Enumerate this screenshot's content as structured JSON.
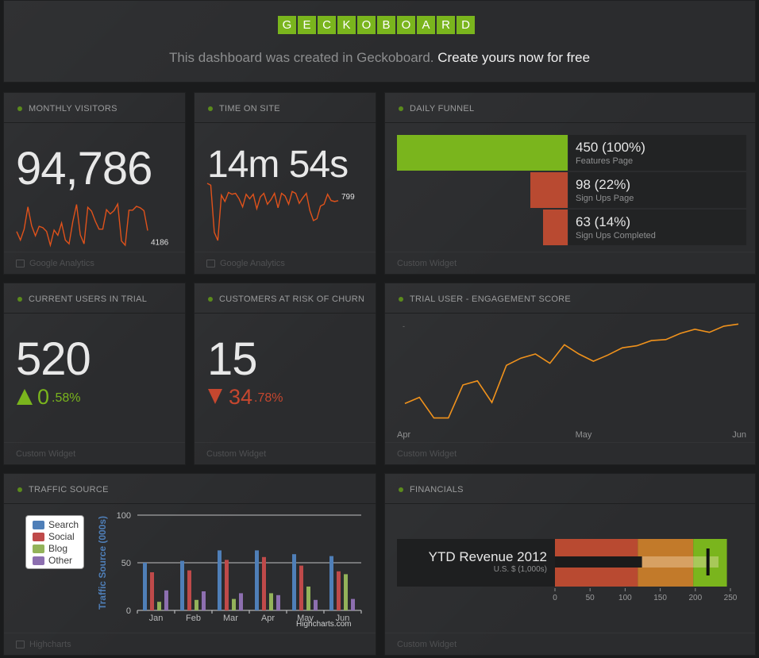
{
  "header": {
    "logo_letters": [
      "G",
      "E",
      "C",
      "K",
      "O",
      "B",
      "O",
      "A",
      "R",
      "D"
    ],
    "tagline_text": "This dashboard was created in Geckoboard.",
    "tagline_link": "Create yours now for free"
  },
  "widgets": {
    "monthly_visitors": {
      "title": "MONTHLY VISITORS",
      "value": "94,786",
      "spark_last": "4186",
      "source": "Google Analytics"
    },
    "time_on_site": {
      "title": "TIME ON SITE",
      "value": "14m 54s",
      "spark_last": "799",
      "source": "Google Analytics"
    },
    "daily_funnel": {
      "title": "DAILY FUNNEL",
      "source": "Custom Widget",
      "rows": [
        {
          "value": "450 (100%)",
          "label": "Features Page",
          "fraction": 1.0,
          "color": "#7ab51d"
        },
        {
          "value": "98 (22%)",
          "label": "Sign Ups Page",
          "fraction": 0.22,
          "color": "#b94a31"
        },
        {
          "value": "63 (14%)",
          "label": "Sign Ups Completed",
          "fraction": 0.14,
          "color": "#b94a31"
        }
      ]
    },
    "current_users_trial": {
      "title": "CURRENT USERS IN TRIAL",
      "value": "520",
      "change_int": "0",
      "change_dec": ".58%",
      "source": "Custom Widget"
    },
    "customers_churn": {
      "title": "CUSTOMERS AT RISK OF CHURN",
      "value": "15",
      "change_int": "34",
      "change_dec": ".78%",
      "source": "Custom Widget"
    },
    "engagement": {
      "title": "TRIAL USER - ENGAGEMENT SCORE",
      "x_labels": [
        "Apr",
        "May",
        "Jun"
      ],
      "source": "Custom Widget"
    },
    "traffic_source": {
      "title": "TRAFFIC SOURCE",
      "source": "Highcharts",
      "credit": "Highcharts.com"
    },
    "financials": {
      "title": "FINANCIALS",
      "label": "YTD Revenue 2012",
      "sublabel": "U.S. $ (1,000s)",
      "source": "Custom Widget"
    }
  },
  "chart_data": [
    {
      "type": "line",
      "name": "monthly-visitors-sparkline",
      "values": [
        4000,
        2200,
        4500,
        9200,
        5200,
        3100,
        5100,
        4800,
        4000,
        1100,
        4300,
        3200,
        5800,
        2200,
        1400,
        6100,
        9700,
        3300,
        1400,
        9100,
        8300,
        6200,
        4500,
        4500,
        8600,
        7700,
        8400,
        9800,
        2000,
        1100,
        8500,
        8500,
        9300,
        9000,
        8400,
        4186
      ],
      "last_label": "4186",
      "color": "#e0521b"
    },
    {
      "type": "line",
      "name": "time-on-site-sparkline",
      "values": [
        990,
        970,
        450,
        360,
        860,
        790,
        890,
        870,
        880,
        820,
        730,
        870,
        820,
        870,
        710,
        840,
        880,
        760,
        810,
        880,
        720,
        880,
        850,
        760,
        900,
        880,
        770,
        830,
        880,
        690,
        580,
        600,
        740,
        760,
        870,
        800,
        790,
        799
      ],
      "last_label": "799",
      "color": "#e0521b"
    },
    {
      "type": "line",
      "name": "trial-user-engagement-score",
      "x_labels": [
        "Apr",
        "May",
        "Jun"
      ],
      "values": [
        22,
        28,
        8,
        8,
        40,
        44,
        23,
        59,
        66,
        70,
        61,
        79,
        70,
        63,
        69,
        76,
        78,
        83,
        84,
        90,
        94,
        91,
        97,
        99
      ],
      "color": "#f0921c"
    },
    {
      "type": "bar",
      "name": "traffic-source",
      "categories": [
        "Jan",
        "Feb",
        "Mar",
        "Apr",
        "May",
        "Jun"
      ],
      "ylabel": "Traffic Source (000s)",
      "ylim": [
        0,
        100
      ],
      "yticks": [
        0,
        50,
        100
      ],
      "legend_position": "top-left",
      "series": [
        {
          "name": "Search",
          "color": "#4f7fb8",
          "values": [
            50,
            52,
            63,
            63,
            59,
            57
          ]
        },
        {
          "name": "Social",
          "color": "#bf4a4a",
          "values": [
            40,
            42,
            53,
            56,
            47,
            41
          ]
        },
        {
          "name": "Blog",
          "color": "#93b35a",
          "values": [
            9,
            11,
            12,
            18,
            25,
            38
          ]
        },
        {
          "name": "Other",
          "color": "#8d6fb0",
          "values": [
            21,
            20,
            18,
            16,
            11,
            12
          ]
        }
      ]
    },
    {
      "type": "bar",
      "name": "ytd-revenue-bullet",
      "xlim": [
        0,
        250
      ],
      "xticks": [
        0,
        50,
        100,
        150,
        200,
        250
      ],
      "ranges": [
        {
          "to": 118,
          "color": "#b94a31"
        },
        {
          "to": 197,
          "color": "#c27a2a"
        },
        {
          "to": 245,
          "color": "#7ab51d"
        }
      ],
      "actual": 124,
      "projected": 233,
      "target": 218
    }
  ]
}
